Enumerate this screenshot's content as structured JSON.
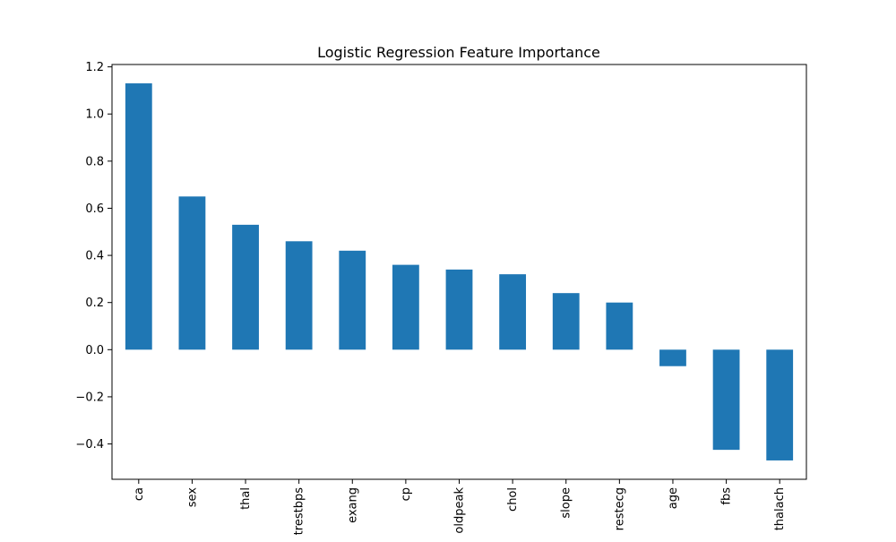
{
  "chart_data": {
    "type": "bar",
    "title": "Logistic Regression Feature Importance",
    "xlabel": "",
    "ylabel": "",
    "categories": [
      "ca",
      "sex",
      "thal",
      "trestbps",
      "exang",
      "cp",
      "oldpeak",
      "chol",
      "slope",
      "restecg",
      "age",
      "fbs",
      "thalach"
    ],
    "values": [
      1.13,
      0.65,
      0.53,
      0.46,
      0.42,
      0.36,
      0.34,
      0.32,
      0.24,
      0.2,
      -0.07,
      -0.425,
      -0.47
    ],
    "ylim": [
      -0.55,
      1.21
    ],
    "yticks": [
      -0.4,
      -0.2,
      0.0,
      0.2,
      0.4,
      0.6,
      0.8,
      1.0,
      1.2
    ],
    "ytick_labels": [
      "−0.4",
      "−0.2",
      "0.0",
      "0.2",
      "0.4",
      "0.6",
      "0.8",
      "1.0",
      "1.2"
    ],
    "bar_color": "#1f77b4",
    "grid": false,
    "legend": "none"
  }
}
